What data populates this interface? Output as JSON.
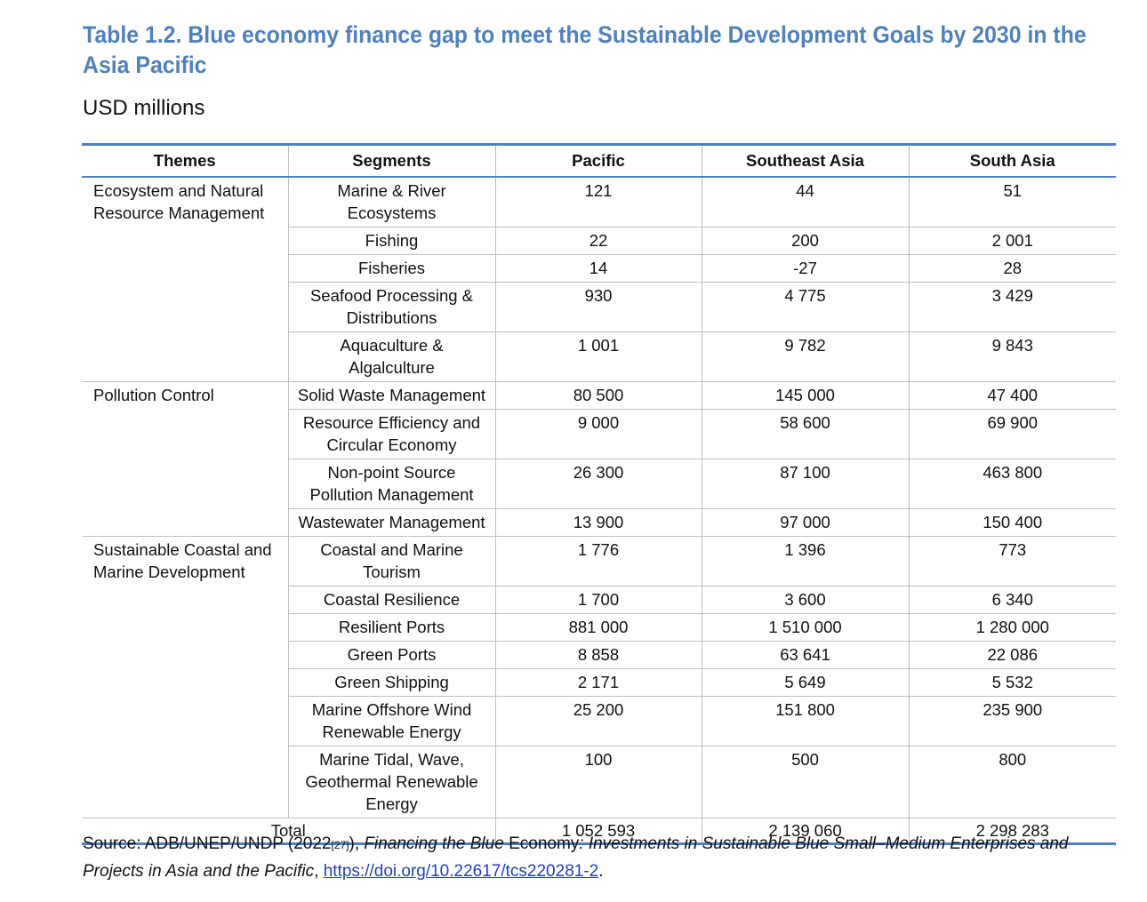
{
  "title": "Table 1.2. Blue economy finance gap to meet the Sustainable Development Goals by 2030 in the Asia Pacific",
  "subtitle": "USD millions",
  "headers": [
    "Themes",
    "Segments",
    "Pacific",
    "Southeast Asia",
    "South Asia"
  ],
  "themes": [
    {
      "name": "Ecosystem and Natural Resource Management",
      "rows": [
        {
          "segment": "Marine & River Ecosystems",
          "pacific": "121",
          "southeast_asia": "44",
          "south_asia": "51"
        },
        {
          "segment": "Fishing",
          "pacific": "22",
          "southeast_asia": "200",
          "south_asia": "2 001"
        },
        {
          "segment": "Fisheries",
          "pacific": "14",
          "southeast_asia": "-27",
          "south_asia": "28"
        },
        {
          "segment": "Seafood Processing & Distributions",
          "pacific": "930",
          "southeast_asia": "4 775",
          "south_asia": "3 429"
        },
        {
          "segment": "Aquaculture & Algalculture",
          "pacific": "1 001",
          "southeast_asia": "9 782",
          "south_asia": "9 843"
        }
      ]
    },
    {
      "name": "Pollution Control",
      "rows": [
        {
          "segment": "Solid Waste Management",
          "pacific": "80 500",
          "southeast_asia": "145 000",
          "south_asia": "47 400"
        },
        {
          "segment": "Resource Efficiency and Circular Economy",
          "pacific": "9 000",
          "southeast_asia": "58 600",
          "south_asia": "69 900"
        },
        {
          "segment": "Non-point Source Pollution Management",
          "pacific": "26 300",
          "southeast_asia": "87 100",
          "south_asia": "463 800"
        },
        {
          "segment": "Wastewater Management",
          "pacific": "13 900",
          "southeast_asia": "97 000",
          "south_asia": "150 400"
        }
      ]
    },
    {
      "name": "Sustainable Coastal and Marine Development",
      "rows": [
        {
          "segment": "Coastal and Marine Tourism",
          "pacific": "1 776",
          "southeast_asia": "1 396",
          "south_asia": "773"
        },
        {
          "segment": "Coastal Resilience",
          "pacific": "1 700",
          "southeast_asia": "3 600",
          "south_asia": "6 340"
        },
        {
          "segment": "Resilient Ports",
          "pacific": "881 000",
          "southeast_asia": "1 510 000",
          "south_asia": "1 280 000"
        },
        {
          "segment": "Green Ports",
          "pacific": "8 858",
          "southeast_asia": "63 641",
          "south_asia": "22 086"
        },
        {
          "segment": "Green Shipping",
          "pacific": "2 171",
          "southeast_asia": "5 649",
          "south_asia": "5 532"
        },
        {
          "segment": "Marine Offshore Wind Renewable Energy",
          "pacific": "25 200",
          "southeast_asia": "151 800",
          "south_asia": "235 900"
        },
        {
          "segment": "Marine Tidal, Wave, Geothermal Renewable Energy",
          "pacific": "100",
          "southeast_asia": "500",
          "south_asia": "800"
        }
      ]
    }
  ],
  "total": {
    "label": "Total",
    "pacific": "1 052 593",
    "southeast_asia": "2 139 060",
    "south_asia": "2 298 283"
  },
  "source": {
    "prefix": "Source: ADB/UNEP/UNDP (2022",
    "ref": "[27]",
    "after_ref": "), ",
    "title_italic_1": "Financing the Blue",
    "title_plain": " Economy",
    "title_italic_2": ": Investments in Sustainable Blue Small–Medium Enterprises and Projects in Asia and the Pacific",
    "comma": ", ",
    "link_text": "https://doi.org/10.22617/tcs220281-2",
    "end": "."
  },
  "colors": {
    "accent": "#4f81bd",
    "link": "#1f3fbf"
  }
}
